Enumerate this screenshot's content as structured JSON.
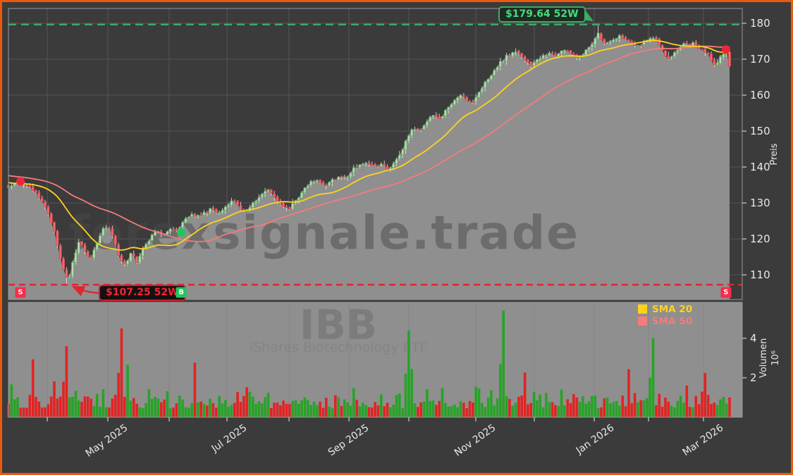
{
  "chart_data": {
    "type": "candlestick+volume",
    "symbol": "IBB",
    "symbol_subtitle": "iShares Biotechnology ETF",
    "watermark": "forexsignale.trade",
    "n_days": 237,
    "price_axis": {
      "label": "Preis",
      "ticks": [
        110,
        120,
        130,
        140,
        150,
        160,
        170,
        180
      ],
      "range": [
        103,
        184
      ]
    },
    "volume_axis": {
      "label": "Volumen",
      "unit": "10⁶",
      "ticks": [
        2,
        4
      ],
      "range": [
        0,
        5.8
      ]
    },
    "x_axis": {
      "months": [
        {
          "t": 0.0538,
          "label": ""
        },
        {
          "t": 0.1378,
          "label": "May 2025"
        },
        {
          "t": 0.2229,
          "label": ""
        },
        {
          "t": 0.303,
          "label": "Jul 2025"
        },
        {
          "t": 0.3891,
          "label": ""
        },
        {
          "t": 0.4722,
          "label": "Sep 2025"
        },
        {
          "t": 0.5552,
          "label": ""
        },
        {
          "t": 0.6481,
          "label": "Nov 2025"
        },
        {
          "t": 0.7292,
          "label": ""
        },
        {
          "t": 0.8123,
          "label": "Jan 2026"
        },
        {
          "t": 0.8876,
          "label": ""
        },
        {
          "t": 0.9638,
          "label": "Mar 2026"
        }
      ]
    },
    "levels": {
      "high_52w": 179.64,
      "low_52w": 107.25
    },
    "annotations": {
      "high_label": "$179.64 52W",
      "low_label": "$107.25 52W"
    },
    "sma": [
      {
        "name": "SMA 20",
        "window": 20,
        "color": "#ffd21e"
      },
      {
        "name": "SMA 50",
        "window": 50,
        "color": "#f47c7c"
      }
    ],
    "signals": [
      {
        "label": "S",
        "t": 0.0166,
        "price": 136.0
      },
      {
        "label": "B",
        "t": 0.2395,
        "price": 121.8
      },
      {
        "label": "S",
        "t": 0.995,
        "price": 172.7
      }
    ],
    "price_anchors": [
      [
        0,
        134.5
      ],
      [
        0.008,
        135.5
      ],
      [
        0.017,
        136
      ],
      [
        0.025,
        134.5
      ],
      [
        0.035,
        133.5
      ],
      [
        0.045,
        131
      ],
      [
        0.053,
        128
      ],
      [
        0.061,
        123.5
      ],
      [
        0.068,
        118
      ],
      [
        0.076,
        111.5
      ],
      [
        0.083,
        107.8
      ],
      [
        0.09,
        114
      ],
      [
        0.098,
        119.5
      ],
      [
        0.106,
        117
      ],
      [
        0.113,
        114
      ],
      [
        0.121,
        118
      ],
      [
        0.13,
        122.5
      ],
      [
        0.138,
        124
      ],
      [
        0.147,
        119
      ],
      [
        0.154,
        114.5
      ],
      [
        0.162,
        112.5
      ],
      [
        0.17,
        116
      ],
      [
        0.178,
        113.5
      ],
      [
        0.186,
        117
      ],
      [
        0.196,
        120
      ],
      [
        0.205,
        122.5
      ],
      [
        0.215,
        121
      ],
      [
        0.225,
        123
      ],
      [
        0.235,
        122
      ],
      [
        0.244,
        125.5
      ],
      [
        0.254,
        127
      ],
      [
        0.264,
        126
      ],
      [
        0.274,
        127.5
      ],
      [
        0.283,
        128.5
      ],
      [
        0.293,
        127
      ],
      [
        0.303,
        129.5
      ],
      [
        0.311,
        131
      ],
      [
        0.321,
        128.5
      ],
      [
        0.33,
        127.5
      ],
      [
        0.34,
        130
      ],
      [
        0.35,
        132
      ],
      [
        0.36,
        134
      ],
      [
        0.369,
        131.5
      ],
      [
        0.379,
        129.5
      ],
      [
        0.389,
        128.5
      ],
      [
        0.399,
        131
      ],
      [
        0.409,
        133.5
      ],
      [
        0.418,
        135.5
      ],
      [
        0.428,
        136.5
      ],
      [
        0.438,
        134.5
      ],
      [
        0.448,
        136
      ],
      [
        0.458,
        137.5
      ],
      [
        0.467,
        137
      ],
      [
        0.477,
        139
      ],
      [
        0.487,
        140.5
      ],
      [
        0.497,
        141.5
      ],
      [
        0.506,
        140
      ],
      [
        0.516,
        141
      ],
      [
        0.526,
        139.5
      ],
      [
        0.536,
        141.5
      ],
      [
        0.545,
        144
      ],
      [
        0.553,
        148.5
      ],
      [
        0.561,
        151
      ],
      [
        0.57,
        150
      ],
      [
        0.58,
        152.5
      ],
      [
        0.589,
        154.5
      ],
      [
        0.599,
        153.5
      ],
      [
        0.609,
        156.5
      ],
      [
        0.619,
        158.5
      ],
      [
        0.629,
        160.5
      ],
      [
        0.635,
        158.5
      ],
      [
        0.643,
        157.5
      ],
      [
        0.653,
        161
      ],
      [
        0.663,
        164
      ],
      [
        0.673,
        166.5
      ],
      [
        0.682,
        169
      ],
      [
        0.692,
        171
      ],
      [
        0.702,
        172.5
      ],
      [
        0.71,
        171
      ],
      [
        0.718,
        169.5
      ],
      [
        0.725,
        168
      ],
      [
        0.733,
        169.5
      ],
      [
        0.741,
        171
      ],
      [
        0.751,
        172
      ],
      [
        0.76,
        171
      ],
      [
        0.77,
        172.5
      ],
      [
        0.78,
        171.5
      ],
      [
        0.79,
        170.5
      ],
      [
        0.8,
        172
      ],
      [
        0.809,
        174
      ],
      [
        0.817,
        177.2
      ],
      [
        0.825,
        174
      ],
      [
        0.833,
        175
      ],
      [
        0.841,
        176
      ],
      [
        0.849,
        176.2
      ],
      [
        0.856,
        175.5
      ],
      [
        0.864,
        174.5
      ],
      [
        0.872,
        173.5
      ],
      [
        0.88,
        174.5
      ],
      [
        0.888,
        175.5
      ],
      [
        0.895,
        176
      ],
      [
        0.903,
        174
      ],
      [
        0.911,
        171.5
      ],
      [
        0.917,
        170
      ],
      [
        0.925,
        172
      ],
      [
        0.933,
        173.5
      ],
      [
        0.94,
        174.5
      ],
      [
        0.948,
        174.5
      ],
      [
        0.956,
        173.5
      ],
      [
        0.964,
        172.5
      ],
      [
        0.972,
        171
      ],
      [
        0.98,
        167.5
      ],
      [
        0.987,
        170.5
      ],
      [
        0.995,
        172.5
      ],
      [
        1,
        168.5
      ]
    ],
    "volume_spikes": [
      [
        0.081,
        3.6
      ],
      [
        0.156,
        4.5
      ],
      [
        0.553,
        4.4
      ],
      [
        0.685,
        5.4
      ],
      [
        0.893,
        4.0
      ]
    ]
  },
  "colors": {
    "background": "#3b3b3b",
    "panel_gray": "#8f8f8f",
    "grid": "#565656",
    "spine": "#999999",
    "accent_orange": "#ea5a0c",
    "sma20": "#ffd21e",
    "sma50": "#f47c7c",
    "up_fill": "#b7dcb5",
    "up_stroke": "#57a557",
    "down_fill": "#ef6a6a",
    "down_stroke": "#d63c4a",
    "wick": "#e0e0e0",
    "vol_up": "#27a327",
    "vol_down": "#e32222",
    "high_line": "#3cab66",
    "high_text": "#42dd7d",
    "low_line": "#e02430",
    "low_text": "#ef2637",
    "badge_sell": "#f82c4e",
    "badge_buy": "#21c55d",
    "tick_text": "#e8e8e8",
    "watermark": "#4a4a4a"
  }
}
